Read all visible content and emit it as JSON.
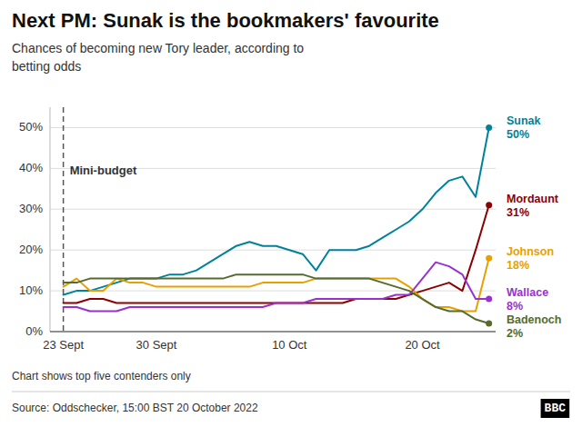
{
  "chart_data": {
    "type": "line",
    "title": "Next PM: Sunak is the bookmakers' favourite",
    "subtitle": "Chances of becoming new Tory leader, according to\nbetting odds",
    "footnote": "Chart shows top five contenders only",
    "source": "Source: Oddschecker, 15:00 BST 20 October 2022",
    "logo": "BBC",
    "annotations": [
      {
        "text": "Mini-budget",
        "x": "23 Sept"
      }
    ],
    "categories": [
      "23 Sept",
      null,
      null,
      null,
      null,
      null,
      null,
      "30 Sept",
      null,
      null,
      null,
      null,
      null,
      null,
      null,
      null,
      null,
      "10 Oct",
      null,
      null,
      null,
      null,
      null,
      null,
      null,
      null,
      null,
      "20 Oct",
      null,
      null,
      null,
      null,
      null
    ],
    "series": [
      {
        "name": "Sunak",
        "color": "#00829B",
        "values": [
          9,
          10,
          10,
          11,
          12,
          13,
          13,
          13,
          14,
          14,
          15,
          17,
          19,
          21,
          22,
          21,
          21,
          20,
          19,
          15,
          20,
          20,
          20,
          21,
          23,
          25,
          27,
          30,
          34,
          37,
          38,
          33,
          50
        ],
        "value_labels": [
          null,
          null,
          null,
          null,
          null,
          null,
          null,
          null,
          null,
          null,
          null,
          null,
          null,
          null,
          null,
          null,
          null,
          null,
          null,
          null,
          null,
          null,
          null,
          null,
          null,
          null,
          null,
          null,
          null,
          null,
          null,
          null,
          "50%"
        ]
      },
      {
        "name": "Mordaunt",
        "color": "#8B0000",
        "values": [
          7,
          7,
          8,
          8,
          7,
          7,
          7,
          7,
          7,
          7,
          7,
          7,
          7,
          7,
          7,
          7,
          7,
          7,
          7,
          7,
          7,
          7,
          8,
          8,
          8,
          8,
          9,
          10,
          11,
          12,
          10,
          20,
          31
        ],
        "value_labels": [
          null,
          null,
          null,
          null,
          null,
          null,
          null,
          null,
          null,
          null,
          null,
          null,
          null,
          null,
          null,
          null,
          null,
          null,
          null,
          null,
          null,
          null,
          null,
          null,
          null,
          null,
          null,
          null,
          null,
          null,
          null,
          null,
          "31%"
        ]
      },
      {
        "name": "Johnson",
        "color": "#E8A000",
        "values": [
          11,
          13,
          10,
          10,
          13,
          12,
          12,
          11,
          11,
          11,
          11,
          11,
          11,
          11,
          11,
          12,
          12,
          12,
          12,
          13,
          13,
          13,
          13,
          13,
          13,
          13,
          11,
          8,
          6,
          6,
          5,
          5,
          18
        ],
        "value_labels": [
          null,
          null,
          null,
          null,
          null,
          null,
          null,
          null,
          null,
          null,
          null,
          null,
          null,
          null,
          null,
          null,
          null,
          null,
          null,
          null,
          null,
          null,
          null,
          null,
          null,
          null,
          null,
          null,
          null,
          null,
          null,
          null,
          "18%"
        ]
      },
      {
        "name": "Wallace",
        "color": "#9932CC",
        "values": [
          6,
          6,
          5,
          5,
          5,
          6,
          6,
          6,
          6,
          6,
          6,
          6,
          6,
          6,
          6,
          6,
          7,
          7,
          7,
          8,
          8,
          8,
          8,
          8,
          8,
          9,
          9,
          13,
          17,
          16,
          14,
          8,
          8
        ],
        "value_labels": [
          null,
          null,
          null,
          null,
          null,
          null,
          null,
          null,
          null,
          null,
          null,
          null,
          null,
          null,
          null,
          null,
          null,
          null,
          null,
          null,
          null,
          null,
          null,
          null,
          null,
          null,
          null,
          null,
          null,
          null,
          null,
          null,
          "8%"
        ]
      },
      {
        "name": "Badenoch",
        "color": "#556B2F",
        "values": [
          12,
          12,
          13,
          13,
          13,
          13,
          13,
          13,
          13,
          13,
          13,
          13,
          13,
          14,
          14,
          14,
          14,
          14,
          14,
          13,
          13,
          13,
          13,
          13,
          12,
          11,
          10,
          8,
          6,
          5,
          5,
          3,
          2
        ],
        "value_labels": [
          null,
          null,
          null,
          null,
          null,
          null,
          null,
          null,
          null,
          null,
          null,
          null,
          null,
          null,
          null,
          null,
          null,
          null,
          null,
          null,
          null,
          null,
          null,
          null,
          null,
          null,
          null,
          null,
          null,
          null,
          null,
          null,
          "2%"
        ]
      }
    ],
    "ylim": [
      0,
      55
    ],
    "yticks": [
      {
        "value": 0,
        "label": "0%"
      },
      {
        "value": 10,
        "label": "10%"
      },
      {
        "value": 20,
        "label": "20%"
      },
      {
        "value": 30,
        "label": "30%"
      },
      {
        "value": 40,
        "label": "40%"
      },
      {
        "value": 50,
        "label": "50%"
      }
    ],
    "grid": true
  }
}
